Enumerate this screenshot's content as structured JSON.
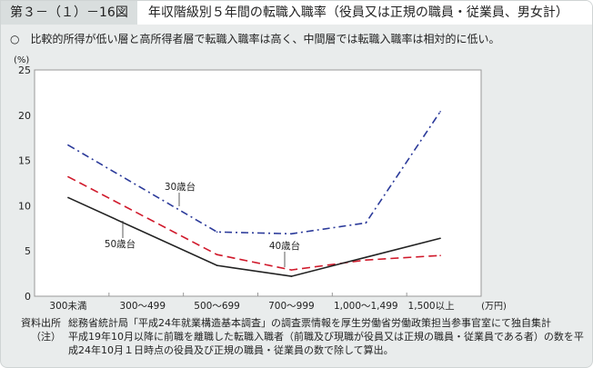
{
  "header": {
    "figure_number": "第３－（１）－16図",
    "title": "年収階級別５年間の転職入職率（役員又は正規の職員・従業員、男女計）"
  },
  "summary": "○　比較的所得が低い層と高所得者層で転職入職率は高く、中間層では転職入職率は相対的に低い。",
  "chart_data": {
    "type": "line",
    "title": "年収階級別５年間の転職入職率（役員又は正規の職員・従業員、男女計）",
    "ylabel": "(%)",
    "xlabel": "(万円)",
    "ylim": [
      0,
      25
    ],
    "yticks": [
      "0",
      "5",
      "10",
      "15",
      "20",
      "25"
    ],
    "categories": [
      "300未満",
      "300～499",
      "500～699",
      "700～999",
      "1,000～1,499",
      "1,500以上"
    ],
    "series": [
      {
        "name": "30歳台",
        "color": "#2b3a9a",
        "style": "dashdot",
        "values": [
          16.7,
          null,
          7.1,
          6.9,
          8.1,
          20.4
        ]
      },
      {
        "name": "40歳台",
        "color": "#d0192b",
        "style": "dash",
        "values": [
          13.2,
          null,
          4.6,
          2.9,
          4.0,
          4.5
        ]
      },
      {
        "name": "50歳台",
        "color": "#222222",
        "style": "solid",
        "values": [
          10.9,
          null,
          3.4,
          2.2,
          4.3,
          6.4
        ]
      }
    ]
  },
  "notes": {
    "source_label": "資料出所",
    "source": "総務省統計局「平成24年就業構造基本調査」の調査票情報を厚生労働省労働政策担当参事官室にて独自集計",
    "note_label": "（注）",
    "note": "平成19年10月以降に前職を離職した転職入職者（前職及び現職が役員又は正規の職員・従業員である者）の数を平成24年10月１日時点の役員及び正規の職員・従業員の数で除して算出。"
  }
}
